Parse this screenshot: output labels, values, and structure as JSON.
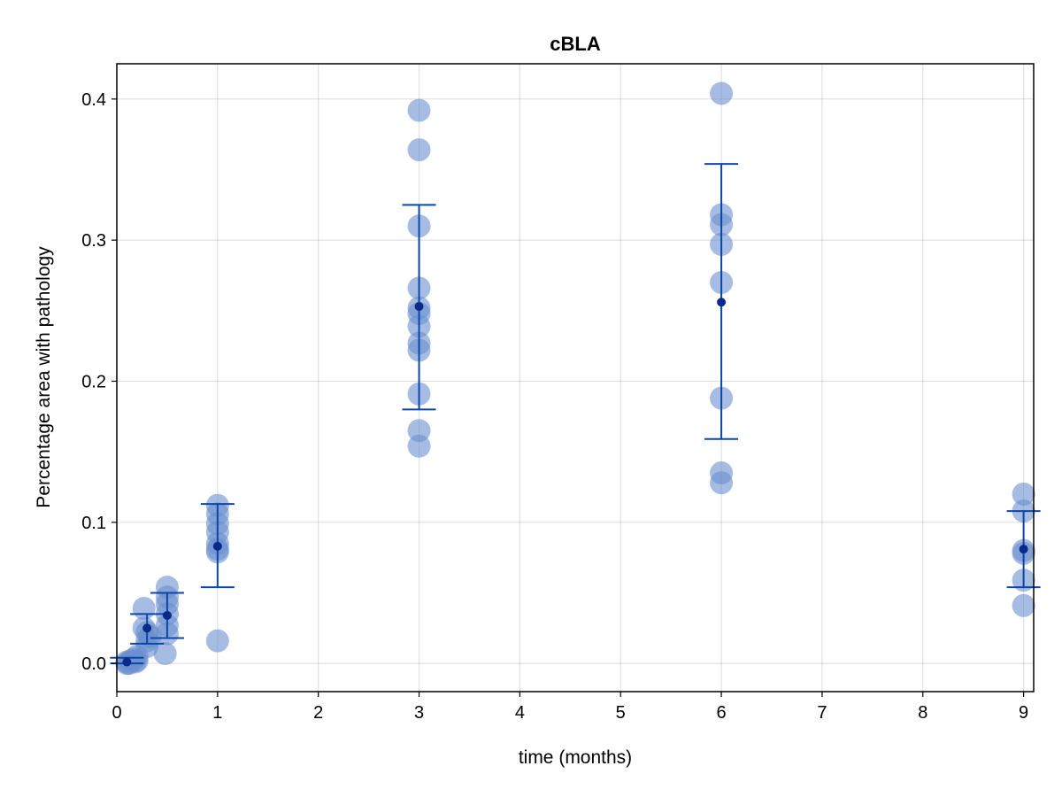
{
  "chart_data": {
    "type": "scatter",
    "title": "cBLA",
    "xlabel": "time (months)",
    "ylabel": "Percentage area with pathology",
    "xlim": [
      0,
      9.1
    ],
    "ylim": [
      -0.02,
      0.425
    ],
    "xticks": [
      0,
      1,
      2,
      3,
      4,
      5,
      6,
      7,
      8,
      9
    ],
    "yticks": [
      0.0,
      0.1,
      0.2,
      0.3,
      0.4
    ],
    "xtick_labels": [
      "0",
      "1",
      "2",
      "3",
      "4",
      "5",
      "6",
      "7",
      "8",
      "9"
    ],
    "ytick_labels": [
      "0.0",
      "0.1",
      "0.2",
      "0.3",
      "0.4"
    ],
    "grid": true,
    "colors": {
      "points": "#6a8fcf",
      "mean": "#0a2a8a",
      "error_bar": "#0b46a8"
    },
    "series": [
      {
        "points": [
          {
            "x": 0.1,
            "y": 0.0
          },
          {
            "x": 0.1,
            "y": 0.001
          },
          {
            "x": 0.12,
            "y": 0.0
          },
          {
            "x": 0.14,
            "y": 0.002
          },
          {
            "x": 0.17,
            "y": 0.003
          },
          {
            "x": 0.18,
            "y": 0.001
          },
          {
            "x": 0.2,
            "y": 0.005
          },
          {
            "x": 0.2,
            "y": 0.002
          },
          {
            "x": 0.27,
            "y": 0.039
          },
          {
            "x": 0.27,
            "y": 0.025
          },
          {
            "x": 0.3,
            "y": 0.022
          },
          {
            "x": 0.3,
            "y": 0.016
          },
          {
            "x": 0.3,
            "y": 0.012
          },
          {
            "x": 0.33,
            "y": 0.019
          },
          {
            "x": 0.5,
            "y": 0.054
          },
          {
            "x": 0.5,
            "y": 0.047
          },
          {
            "x": 0.5,
            "y": 0.042
          },
          {
            "x": 0.5,
            "y": 0.035
          },
          {
            "x": 0.5,
            "y": 0.027
          },
          {
            "x": 0.5,
            "y": 0.021
          },
          {
            "x": 0.48,
            "y": 0.007
          },
          {
            "x": 1.0,
            "y": 0.112
          },
          {
            "x": 1.0,
            "y": 0.106
          },
          {
            "x": 1.0,
            "y": 0.099
          },
          {
            "x": 1.0,
            "y": 0.093
          },
          {
            "x": 1.0,
            "y": 0.085
          },
          {
            "x": 1.0,
            "y": 0.081
          },
          {
            "x": 1.0,
            "y": 0.079
          },
          {
            "x": 1.0,
            "y": 0.016
          },
          {
            "x": 3.0,
            "y": 0.392
          },
          {
            "x": 3.0,
            "y": 0.364
          },
          {
            "x": 3.0,
            "y": 0.31
          },
          {
            "x": 3.0,
            "y": 0.266
          },
          {
            "x": 3.0,
            "y": 0.252
          },
          {
            "x": 3.0,
            "y": 0.248
          },
          {
            "x": 3.0,
            "y": 0.239
          },
          {
            "x": 3.0,
            "y": 0.227
          },
          {
            "x": 3.0,
            "y": 0.222
          },
          {
            "x": 3.0,
            "y": 0.191
          },
          {
            "x": 3.0,
            "y": 0.165
          },
          {
            "x": 3.0,
            "y": 0.154
          },
          {
            "x": 6.0,
            "y": 0.404
          },
          {
            "x": 6.0,
            "y": 0.318
          },
          {
            "x": 6.0,
            "y": 0.311
          },
          {
            "x": 6.0,
            "y": 0.297
          },
          {
            "x": 6.0,
            "y": 0.27
          },
          {
            "x": 6.0,
            "y": 0.188
          },
          {
            "x": 6.0,
            "y": 0.135
          },
          {
            "x": 6.0,
            "y": 0.128
          },
          {
            "x": 9.0,
            "y": 0.12
          },
          {
            "x": 9.0,
            "y": 0.108
          },
          {
            "x": 9.0,
            "y": 0.08
          },
          {
            "x": 9.0,
            "y": 0.078
          },
          {
            "x": 9.0,
            "y": 0.059
          },
          {
            "x": 9.0,
            "y": 0.041
          }
        ],
        "means": [
          {
            "x": 0.1,
            "mean": 0.001,
            "lower": 0.0,
            "upper": 0.004
          },
          {
            "x": 0.3,
            "mean": 0.025,
            "lower": 0.014,
            "upper": 0.035
          },
          {
            "x": 0.5,
            "mean": 0.034,
            "lower": 0.018,
            "upper": 0.05
          },
          {
            "x": 1.0,
            "mean": 0.083,
            "lower": 0.054,
            "upper": 0.113
          },
          {
            "x": 3.0,
            "mean": 0.253,
            "lower": 0.18,
            "upper": 0.325
          },
          {
            "x": 6.0,
            "mean": 0.256,
            "lower": 0.159,
            "upper": 0.354
          },
          {
            "x": 9.0,
            "mean": 0.081,
            "lower": 0.054,
            "upper": 0.108
          }
        ]
      }
    ]
  }
}
